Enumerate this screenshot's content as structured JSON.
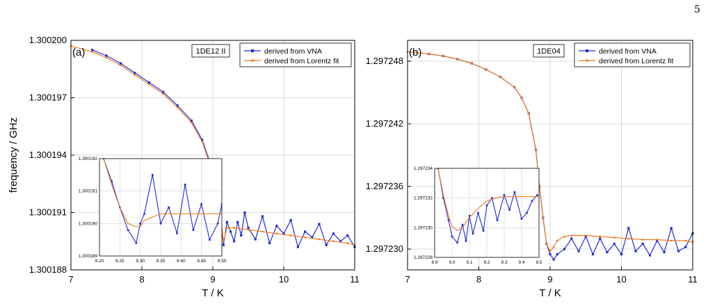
{
  "page_number": "5",
  "colors": {
    "vna": "#1f2ad6",
    "fit": "#f07a1e",
    "grid": "#cfcfcf"
  },
  "chart_data": [
    {
      "type": "line",
      "panel_label": "(a)",
      "sample": "1DE12 II",
      "xlabel": "T / K",
      "ylabel": "frequency / GHz",
      "xlim": [
        7,
        11
      ],
      "ylim": [
        1.300188,
        1.3002
      ],
      "xticks": [
        "7",
        "8",
        "9",
        "10",
        "11"
      ],
      "yticks": [
        "1.300188",
        "1.300191",
        "1.300194",
        "1.300197",
        "1.300200"
      ],
      "legend": [
        "derived from VNA",
        "derived from Lorentz fit"
      ],
      "legend_position": "top-right",
      "grid": true,
      "series": [
        {
          "name": "derived from VNA",
          "x": [
            7.3,
            7.5,
            7.7,
            7.9,
            8.1,
            8.3,
            8.5,
            8.7,
            8.85,
            9.0,
            9.1,
            9.15,
            9.2,
            9.25,
            9.3,
            9.35,
            9.4,
            9.45,
            9.5,
            9.6,
            9.7,
            9.8,
            9.9,
            10.0,
            10.1,
            10.2,
            10.3,
            10.4,
            10.5,
            10.6,
            10.7,
            10.8,
            10.9,
            11.0
          ],
          "y": [
            1.3001995,
            1.3001992,
            1.3001988,
            1.3001983,
            1.3001978,
            1.3001973,
            1.3001966,
            1.3001958,
            1.3001948,
            1.3001932,
            1.3001912,
            1.3001893,
            1.3001905,
            1.30019,
            1.3001895,
            1.3001905,
            1.3001898,
            1.300191,
            1.3001902,
            1.3001896,
            1.3001908,
            1.3001894,
            1.3001903,
            1.3001899,
            1.3001906,
            1.3001892,
            1.30019,
            1.3001897,
            1.3001904,
            1.3001893,
            1.3001899,
            1.3001895,
            1.3001898,
            1.3001892
          ]
        },
        {
          "name": "derived from Lorentz fit",
          "x": [
            7.0,
            7.3,
            7.5,
            7.7,
            7.9,
            8.1,
            8.3,
            8.5,
            8.7,
            8.85,
            9.0,
            9.1,
            9.15,
            9.2,
            9.3,
            9.5,
            9.7,
            9.9,
            10.1,
            10.3,
            10.5,
            10.7,
            10.9,
            11.0
          ],
          "y": [
            1.3001997,
            1.3001994,
            1.3001991,
            1.3001987,
            1.3001982,
            1.3001977,
            1.3001972,
            1.3001965,
            1.3001957,
            1.3001947,
            1.3001931,
            1.3001911,
            1.3001895,
            1.3001902,
            1.3001902,
            1.3001901,
            1.30019,
            1.3001899,
            1.3001898,
            1.3001897,
            1.3001896,
            1.3001895,
            1.3001894,
            1.3001893
          ]
        }
      ],
      "inset": {
        "xlim": [
          9.2,
          9.5
        ],
        "ylim": [
          1.300189,
          1.300192
        ],
        "xticks": [
          "9.20",
          "9.25",
          "9.30",
          "9.35",
          "9.40",
          "9.45",
          "9.50"
        ],
        "yticks": [
          "1.300189",
          "1.300190",
          "1.300191",
          "1.300192"
        ],
        "series": [
          {
            "name": "derived from VNA",
            "x": [
              9.21,
              9.23,
              9.25,
              9.27,
              9.29,
              9.3,
              9.31,
              9.33,
              9.35,
              9.37,
              9.39,
              9.41,
              9.43,
              9.45,
              9.47,
              9.49,
              9.5
            ],
            "y": [
              1.300192,
              1.3001913,
              1.3001905,
              1.3001898,
              1.3001894,
              1.30019,
              1.3001903,
              1.3001915,
              1.30019,
              1.3001905,
              1.3001897,
              1.3001912,
              1.3001898,
              1.3001906,
              1.3001895,
              1.30019,
              1.3001906
            ]
          },
          {
            "name": "derived from Lorentz fit",
            "x": [
              9.21,
              9.23,
              9.25,
              9.27,
              9.29,
              9.3,
              9.31,
              9.33,
              9.35,
              9.4,
              9.45,
              9.5
            ],
            "y": [
              1.300192,
              1.3001912,
              1.3001905,
              1.30019,
              1.3001899,
              1.3001899,
              1.3001901,
              1.3001902,
              1.3001903,
              1.3001903,
              1.3001903,
              1.3001903
            ]
          }
        ]
      }
    },
    {
      "type": "line",
      "panel_label": "(b)",
      "sample": "1DE04",
      "xlabel": "T / K",
      "ylabel": "",
      "xlim": [
        7,
        11
      ],
      "ylim": [
        1.297228,
        1.29725
      ],
      "xticks": [
        "7",
        "8",
        "9",
        "10",
        "11"
      ],
      "yticks": [
        "1.297230",
        "1.297236",
        "1.297242",
        "1.297248"
      ],
      "legend": [
        "derived from VNA",
        "derived from Lorentz fit"
      ],
      "legend_position": "top-right",
      "grid": true,
      "series": [
        {
          "name": "derived from VNA",
          "x": [
            7.3,
            7.5,
            7.7,
            7.9,
            8.1,
            8.3,
            8.5,
            8.6,
            8.7,
            8.8,
            8.85,
            8.9,
            8.95,
            9.0,
            9.05,
            9.1,
            9.2,
            9.3,
            9.4,
            9.5,
            9.6,
            9.7,
            9.8,
            9.9,
            10.0,
            10.1,
            10.2,
            10.3,
            10.4,
            10.5,
            10.6,
            10.7,
            10.8,
            10.9,
            11.0
          ],
          "y": [
            1.2972487,
            1.2972485,
            1.2972482,
            1.2972478,
            1.2972472,
            1.2972465,
            1.2972455,
            1.2972445,
            1.297243,
            1.2972395,
            1.297236,
            1.297233,
            1.2972305,
            1.2972295,
            1.297229,
            1.2972295,
            1.29723,
            1.297231,
            1.2972298,
            1.2972312,
            1.2972295,
            1.297231,
            1.2972297,
            1.2972305,
            1.2972295,
            1.297232,
            1.2972298,
            1.2972305,
            1.2972294,
            1.2972308,
            1.2972297,
            1.297232,
            1.2972298,
            1.2972302,
            1.2972315
          ]
        },
        {
          "name": "derived from Lorentz fit",
          "x": [
            7.0,
            7.3,
            7.5,
            7.7,
            7.9,
            8.1,
            8.3,
            8.5,
            8.6,
            8.7,
            8.8,
            8.85,
            8.9,
            8.95,
            9.0,
            9.05,
            9.1,
            9.2,
            9.3,
            9.5,
            9.7,
            9.9,
            10.1,
            10.3,
            10.5,
            10.7,
            10.9,
            11.0
          ],
          "y": [
            1.2972489,
            1.2972487,
            1.2972485,
            1.2972482,
            1.2972478,
            1.2972472,
            1.2972465,
            1.2972455,
            1.2972445,
            1.297243,
            1.2972395,
            1.297236,
            1.297233,
            1.2972305,
            1.2972298,
            1.2972302,
            1.2972308,
            1.2972312,
            1.2972313,
            1.2972313,
            1.2972312,
            1.2972311,
            1.297231,
            1.2972309,
            1.2972309,
            1.2972308,
            1.2972308,
            1.2972307
          ]
        }
      ],
      "inset": {
        "xlim": [
          8.9,
          9.5
        ],
        "ylim": [
          1.297228,
          1.297234
        ],
        "xticks": [
          "8.9",
          "9.0",
          "9.1",
          "9.2",
          "9.3",
          "9.4",
          "9.5"
        ],
        "yticks": [
          "1.297228",
          "1.297230",
          "1.297232",
          "1.297234"
        ],
        "series": [
          {
            "name": "derived from VNA",
            "x": [
              8.92,
              8.95,
              8.98,
              9.0,
              9.03,
              9.06,
              9.08,
              9.1,
              9.12,
              9.15,
              9.18,
              9.2,
              9.23,
              9.26,
              9.3,
              9.33,
              9.36,
              9.4,
              9.43,
              9.46,
              9.49
            ],
            "y": [
              1.297234,
              1.297232,
              1.2972305,
              1.2972294,
              1.297229,
              1.2972302,
              1.2972291,
              1.2972308,
              1.2972296,
              1.297231,
              1.2972298,
              1.2972315,
              1.297232,
              1.2972305,
              1.2972322,
              1.2972312,
              1.2972324,
              1.2972306,
              1.297231,
              1.2972318,
              1.2972322
            ]
          },
          {
            "name": "derived from Lorentz fit",
            "x": [
              8.92,
              8.95,
              8.98,
              9.0,
              9.03,
              9.06,
              9.1,
              9.15,
              9.2,
              9.25,
              9.3,
              9.35,
              9.4,
              9.45,
              9.5
            ],
            "y": [
              1.297234,
              1.2972322,
              1.2972308,
              1.2972301,
              1.2972298,
              1.29723,
              1.2972307,
              1.2972313,
              1.2972318,
              1.297232,
              1.2972321,
              1.2972321,
              1.2972321,
              1.2972321,
              1.2972321
            ]
          }
        ]
      }
    }
  ]
}
